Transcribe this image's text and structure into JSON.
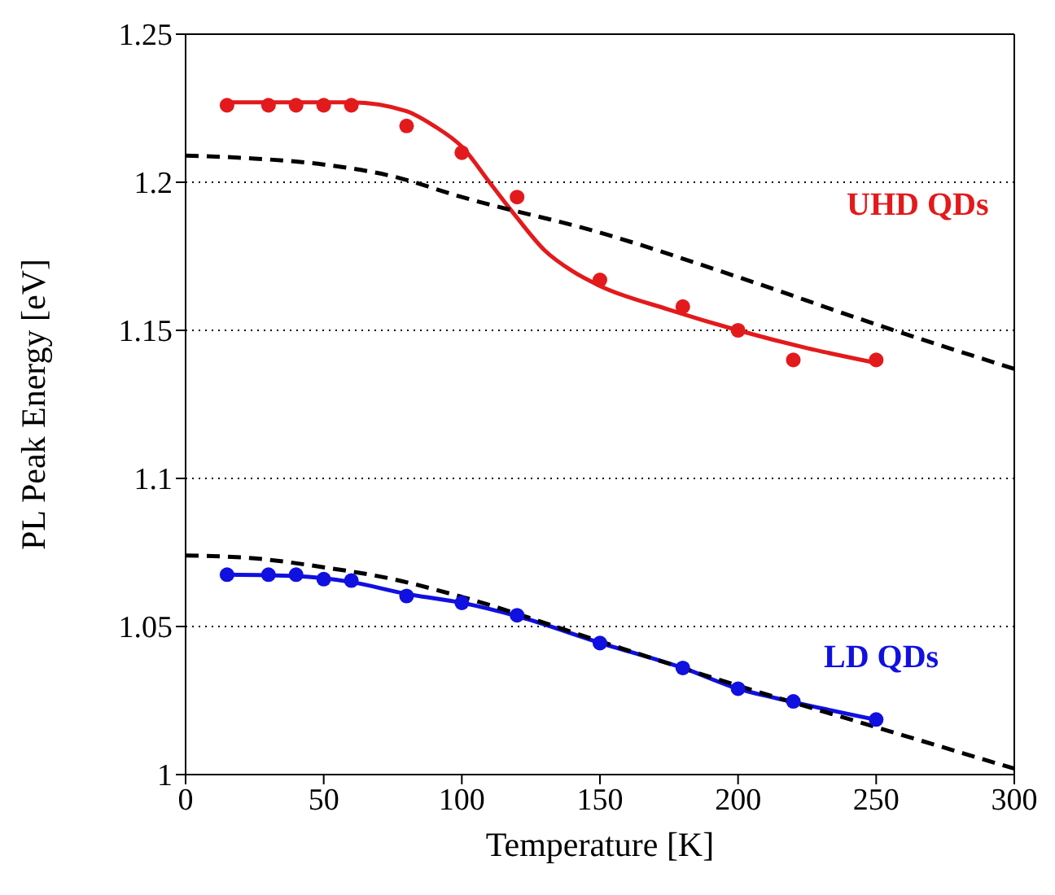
{
  "chart_data": {
    "type": "scatter",
    "xlabel": "Temperature [K]",
    "ylabel": "PL Peak Energy [eV]",
    "xlim": [
      0,
      300
    ],
    "xticks": [
      0,
      50,
      100,
      150,
      200,
      250,
      300
    ],
    "ylim": [
      1,
      1.25
    ],
    "yticks": [
      1,
      1.05,
      1.1,
      1.15,
      1.2,
      1.25
    ],
    "grid": "y",
    "series": [
      {
        "color": "#e31a1c",
        "marker": "circle",
        "x": [
          15,
          30,
          40,
          50,
          60,
          80,
          100,
          120,
          150,
          180,
          200,
          220,
          250
        ],
        "values": [
          1.226,
          1.226,
          1.226,
          1.226,
          1.226,
          1.219,
          1.21,
          1.195,
          1.167,
          1.158,
          1.15,
          1.14,
          1.14
        ]
      },
      {
        "type": "line",
        "color": "#e31a1c",
        "marker": "none",
        "line_style": "solid",
        "x": [
          15,
          40,
          60,
          80,
          90,
          100,
          110,
          120,
          130,
          140,
          150,
          175,
          200,
          225,
          250
        ],
        "values": [
          1.227,
          1.227,
          1.227,
          1.224,
          1.219,
          1.212,
          1.2,
          1.188,
          1.177,
          1.17,
          1.165,
          1.157,
          1.15,
          1.144,
          1.139
        ]
      },
      {
        "type": "line",
        "color": "#000000",
        "marker": "none",
        "line_style": "dashed",
        "x": [
          0,
          25,
          50,
          75,
          100,
          150,
          200,
          250,
          300
        ],
        "values": [
          1.209,
          1.208,
          1.206,
          1.202,
          1.195,
          1.183,
          1.168,
          1.152,
          1.137
        ]
      },
      {
        "color": "#1010e0",
        "marker": "circle",
        "x": [
          15,
          30,
          40,
          50,
          60,
          80,
          100,
          120,
          150,
          180,
          200,
          220,
          250
        ],
        "values": [
          1.0675,
          1.0675,
          1.0675,
          1.066,
          1.0655,
          1.0603,
          1.058,
          1.0538,
          1.0444,
          1.036,
          1.029,
          1.0247,
          1.0186
        ]
      },
      {
        "type": "line",
        "color": "#1010e0",
        "marker": "none",
        "line_style": "solid",
        "x": [
          15,
          40,
          60,
          80,
          100,
          120,
          150,
          180,
          200,
          220,
          250
        ],
        "values": [
          1.0675,
          1.067,
          1.065,
          1.061,
          1.058,
          1.0535,
          1.0445,
          1.036,
          1.029,
          1.0245,
          1.0185
        ]
      },
      {
        "type": "line",
        "color": "#000000",
        "marker": "none",
        "line_style": "dashed",
        "x": [
          0,
          25,
          50,
          75,
          100,
          150,
          200,
          250,
          300
        ],
        "values": [
          1.074,
          1.073,
          1.07,
          1.066,
          1.06,
          1.045,
          1.03,
          1.016,
          1.002
        ]
      }
    ],
    "annotations": [
      "UHD QDs",
      "LD QDs"
    ]
  }
}
